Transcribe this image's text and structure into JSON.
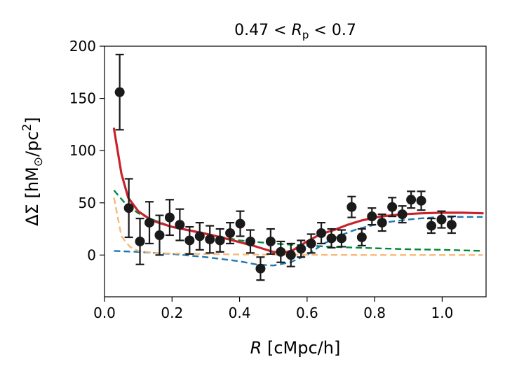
{
  "chart_data": {
    "type": "line",
    "title": {
      "prefix": "0.47 < ",
      "var": "R",
      "sub": "p",
      "suffix": " < 0.7"
    },
    "xlabel": {
      "var": "R",
      "rest": " [cMpc/h]"
    },
    "ylabel": {
      "pre": "ΔΣ [hM",
      "sub": "⊙",
      "mid": "/pc",
      "sup": "2",
      "post": "]"
    },
    "xlim": [
      0,
      1.13
    ],
    "ylim": [
      -40,
      200
    ],
    "xticks": [
      0.0,
      0.2,
      0.4,
      0.6,
      0.8,
      1.0
    ],
    "xtick_labels": [
      "0.0",
      "0.2",
      "0.4",
      "0.6",
      "0.8",
      "1.0"
    ],
    "yticks": [
      0,
      50,
      100,
      150,
      200
    ],
    "ytick_labels": [
      "0",
      "50",
      "100",
      "150",
      "200"
    ],
    "data_points": {
      "name": "measurements",
      "color": "#1a1a1a",
      "x": [
        0.045,
        0.072,
        0.105,
        0.133,
        0.163,
        0.193,
        0.223,
        0.252,
        0.282,
        0.312,
        0.342,
        0.372,
        0.402,
        0.432,
        0.462,
        0.492,
        0.522,
        0.552,
        0.582,
        0.612,
        0.642,
        0.672,
        0.702,
        0.732,
        0.762,
        0.792,
        0.822,
        0.852,
        0.882,
        0.908,
        0.938,
        0.968,
        0.998,
        1.028
      ],
      "y": [
        156,
        45,
        13,
        31,
        19,
        36,
        29,
        14,
        18,
        15,
        14,
        21,
        30,
        13,
        -13,
        13,
        3,
        0,
        6,
        11,
        21,
        16,
        16,
        46,
        17,
        37,
        31,
        46,
        39,
        53,
        52,
        28,
        34,
        29
      ],
      "yerr": [
        36,
        28,
        22,
        20,
        19,
        17,
        15,
        13,
        13,
        13,
        11,
        10,
        12,
        11,
        11,
        12,
        10,
        11,
        8,
        9,
        10,
        9,
        8,
        10,
        8,
        8,
        8,
        9,
        8,
        8,
        9,
        7,
        8,
        8
      ]
    },
    "series": [
      {
        "name": "total model",
        "color": "#c8232c",
        "style": "solid",
        "x": [
          0.028,
          0.05,
          0.07,
          0.1,
          0.14,
          0.2,
          0.26,
          0.32,
          0.38,
          0.44,
          0.5,
          0.53,
          0.56,
          0.6,
          0.64,
          0.68,
          0.72,
          0.76,
          0.82,
          0.88,
          0.94,
          1.0,
          1.06,
          1.12
        ],
        "y": [
          121,
          78,
          55,
          42,
          33,
          27,
          23,
          19,
          14,
          9,
          3,
          2,
          5,
          13,
          20,
          24,
          29,
          33,
          37,
          39,
          40,
          40.5,
          40.5,
          40
        ]
      },
      {
        "name": "green component",
        "color": "#00873e",
        "style": "dashed",
        "x": [
          0.028,
          0.06,
          0.1,
          0.15,
          0.2,
          0.3,
          0.4,
          0.5,
          0.6,
          0.7,
          0.8,
          0.9,
          1.0,
          1.12
        ],
        "y": [
          62,
          50,
          40,
          33,
          27,
          20,
          14,
          11,
          9,
          7.5,
          6.5,
          5.5,
          5,
          4
        ]
      },
      {
        "name": "blue component",
        "color": "#1f77b4",
        "style": "dashed",
        "x": [
          0.028,
          0.1,
          0.2,
          0.3,
          0.4,
          0.45,
          0.5,
          0.55,
          0.6,
          0.65,
          0.7,
          0.75,
          0.8,
          0.85,
          0.9,
          0.95,
          1.0,
          1.12
        ],
        "y": [
          4,
          3,
          1,
          -2,
          -6,
          -9,
          -10,
          -7,
          0,
          11,
          19,
          25,
          29,
          32,
          34,
          35.5,
          36.5,
          36.5
        ]
      },
      {
        "name": "orange component",
        "color": "#f6b979",
        "style": "dashed",
        "x": [
          0.028,
          0.05,
          0.075,
          0.1,
          0.15,
          0.2,
          0.3,
          0.4,
          0.5,
          0.6,
          0.7,
          0.8,
          0.9,
          1.0,
          1.12
        ],
        "y": [
          55,
          18,
          8,
          4,
          2,
          1.5,
          1,
          0.5,
          0.3,
          0.2,
          0.1,
          0,
          0,
          0,
          0
        ]
      }
    ]
  }
}
